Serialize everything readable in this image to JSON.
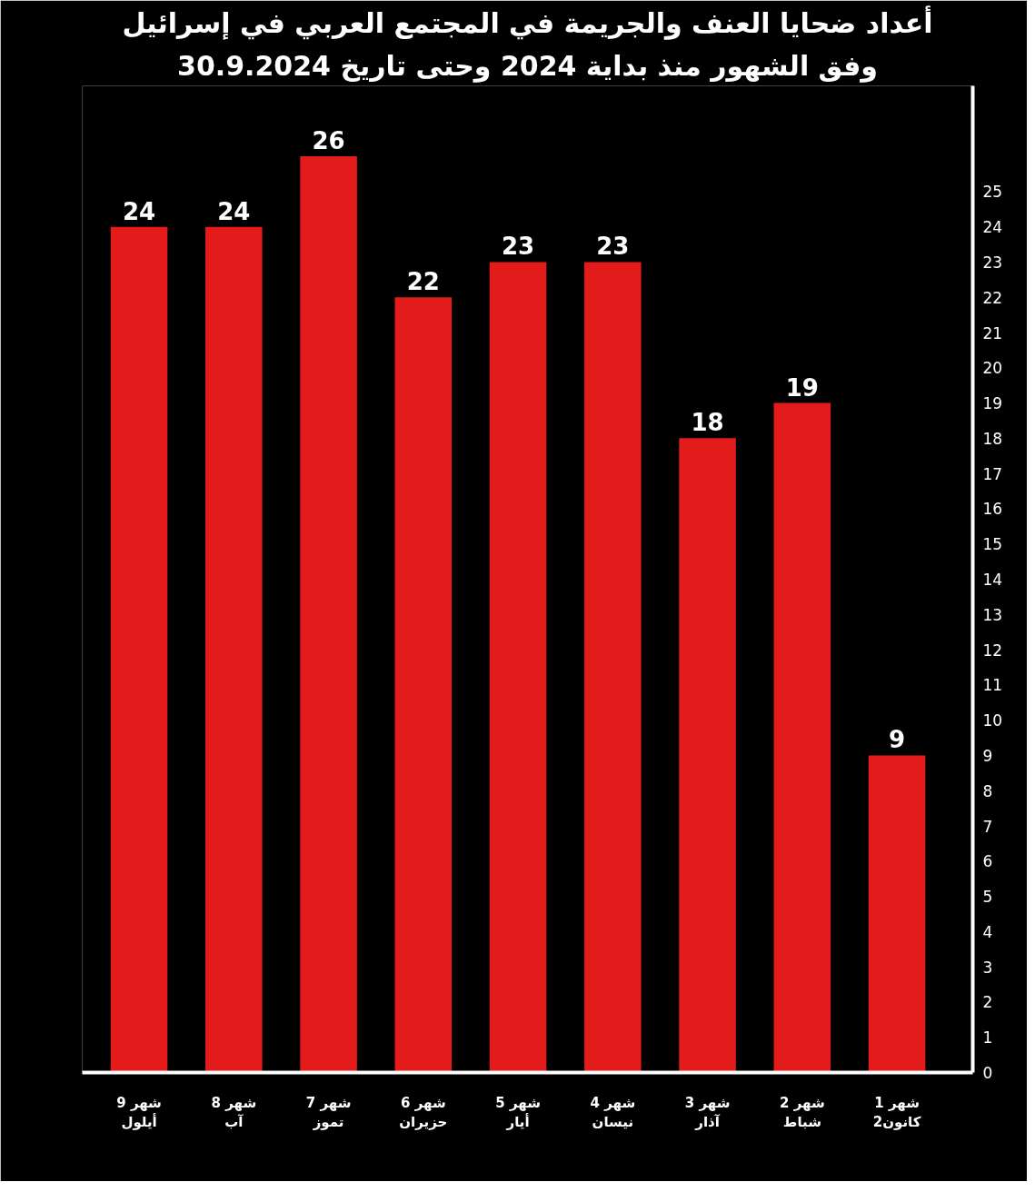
{
  "chart_data": {
    "type": "bar",
    "title": "أعداد ضحايا العنف والجريمة في المجتمع العربي في إسرائيل",
    "subtitle": "وفق الشهور منذ بداية 2024 وحتى تاريخ 30.9.2024",
    "categories": [
      "شهر 9\nأيلول",
      "شهر 8\nآب",
      "شهر 7\nتموز",
      "شهر 6\nحزيران",
      "شهر 5\nأيار",
      "شهر 4\nنيسان",
      "شهر 3\nآذار",
      "شهر 2\nشباط",
      "شهر 1\nكانون2"
    ],
    "values": [
      24,
      24,
      26,
      22,
      23,
      23,
      18,
      19,
      9
    ],
    "color": "#e31b1b",
    "ylim": [
      0,
      28
    ],
    "yticks": [
      0,
      1,
      2,
      3,
      4,
      5,
      6,
      7,
      8,
      9,
      10,
      11,
      12,
      13,
      14,
      15,
      16,
      17,
      18,
      19,
      20,
      21,
      22,
      23,
      24,
      25
    ],
    "data_labels": true,
    "grid": false
  }
}
